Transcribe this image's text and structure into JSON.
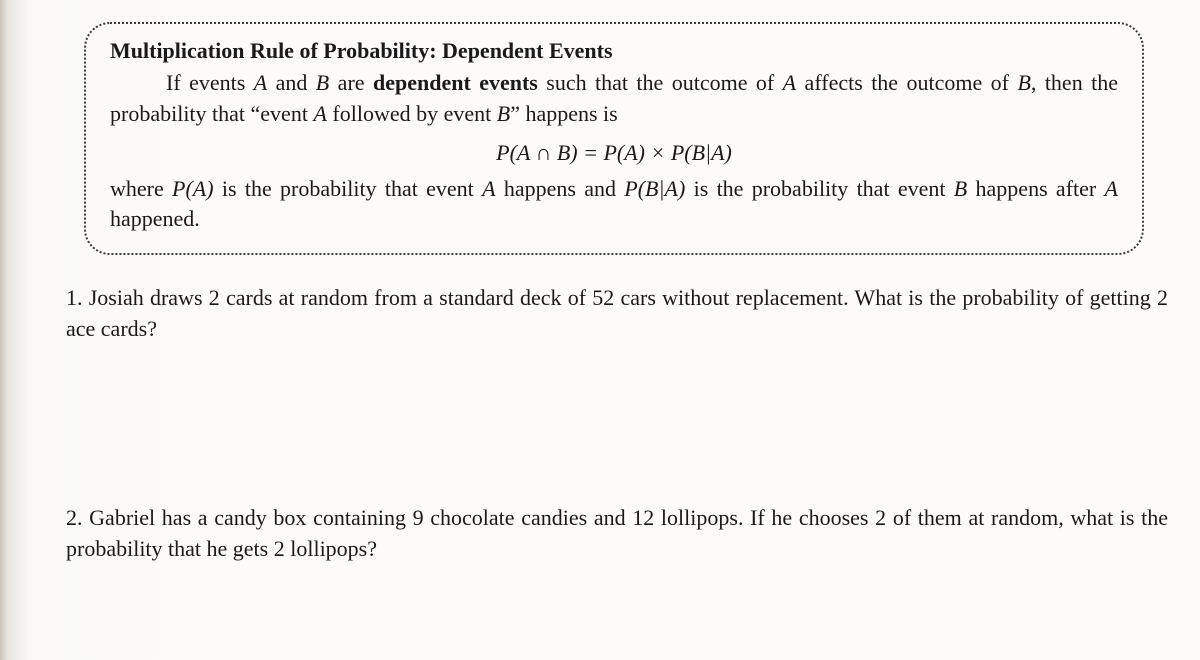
{
  "rule": {
    "title": "Multiplication Rule of Probability: Dependent Events",
    "line1_a": "If events ",
    "A": "A",
    "line1_b": " and ",
    "B": "B",
    "line1_c": " are ",
    "dep": "dependent events",
    "line1_d": " such that the outcome of ",
    "line1_e": " affects the outcome of ",
    "line1_f": ", then the probability that “event ",
    "line1_g": " followed by event ",
    "line1_h": "” happens is",
    "formula": "P(A ∩ B) = P(A) × P(B|A)",
    "line2_a": "where ",
    "PA": "P(A)",
    "line2_b": " is the probability that event ",
    "line2_c": " happens and  ",
    "PBA": "P(B|A)",
    "line2_d": "  is the probability that event ",
    "line2_e": " happens after ",
    "line2_f": " happened."
  },
  "q1": {
    "num": "1. ",
    "text_a": "Josiah draws 2 cards at random from a standard deck of 52 cars without replacement. What is the probability of getting 2 ace cards?"
  },
  "q2": {
    "num": "2. ",
    "text_a": "Gabriel has a candy box containing 9 chocolate candies and 12 lollipops. If he chooses 2 of them at random, what is the probability that he gets 2 lollipops?"
  },
  "colors": {
    "text": "#1a1a1a",
    "border": "#3a3a3a",
    "background": "#fcfbfa"
  }
}
